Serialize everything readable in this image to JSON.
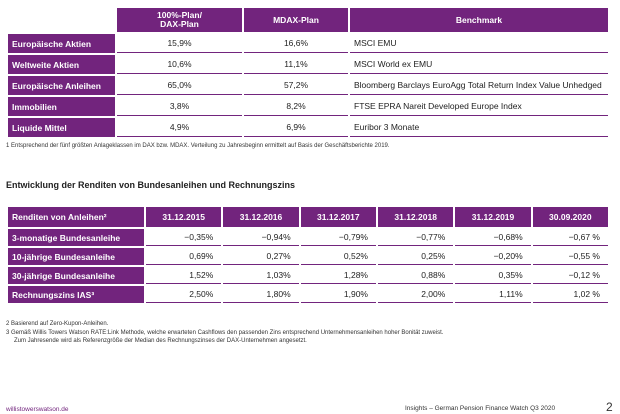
{
  "table1": {
    "headers": [
      "100%-Plan/\nDAX-Plan",
      "MDAX-Plan",
      "Benchmark"
    ],
    "header_line1": "100%-Plan/",
    "header_line2": "DAX-Plan",
    "rows": [
      {
        "label": "Europäische Aktien",
        "dax": "15,9%",
        "mdax": "16,6%",
        "benchmark": "MSCI EMU"
      },
      {
        "label": "Weltweite Aktien",
        "dax": "10,6%",
        "mdax": "11,1%",
        "benchmark": "MSCI World ex EMU"
      },
      {
        "label": "Europäische Anleihen",
        "dax": "65,0%",
        "mdax": "57,2%",
        "benchmark": "Bloomberg Barclays EuroAgg Total Return Index Value Unhedged"
      },
      {
        "label": "Immobilien",
        "dax": "3,8%",
        "mdax": "8,2%",
        "benchmark": "FTSE EPRA Nareit Developed Europe Index"
      },
      {
        "label": "Liquide Mittel",
        "dax": "4,9%",
        "mdax": "6,9%",
        "benchmark": "Euribor 3 Monate"
      }
    ]
  },
  "footnote1": "1  Entsprechend der fünf größten Anlageklassen im DAX bzw. MDAX. Verteilung zu Jahresbeginn ermittelt auf Basis der Geschäftsberichte 2019.",
  "section_title": "Entwicklung der Renditen von Bundesanleihen und Rechnungszins",
  "table2": {
    "header_label": "Renditen von Anleihen²",
    "dates": [
      "31.12.2015",
      "31.12.2016",
      "31.12.2017",
      "31.12.2018",
      "31.12.2019",
      "30.09.2020"
    ],
    "rows": [
      {
        "label": "3-monatige Bundesanleihe",
        "values": [
          "−0,35%",
          "−0,94%",
          "−0,79%",
          "−0,77%",
          "−0,68%",
          "−0,67 %"
        ]
      },
      {
        "label": "10-jährige Bundesanleihe",
        "values": [
          "0,69%",
          "0,27%",
          "0,52%",
          "0,25%",
          "−0,20%",
          "−0,55 %"
        ]
      },
      {
        "label": "30-jährige Bundesanleihe",
        "values": [
          "1,52%",
          "1,03%",
          "1,28%",
          "0,88%",
          "0,35%",
          "−0,12 %"
        ]
      },
      {
        "label": "Rechnungszins IAS³",
        "values": [
          "2,50%",
          "1,80%",
          "1,90%",
          "2,00%",
          "1,11%",
          "1,02 %"
        ]
      }
    ]
  },
  "footnote2": "2  Basierend auf Zero-Kupon-Anleihen.",
  "footnote3a": "3  Gemäß Willis Towers Watson RATE:Link Methode, welche erwarteten Cashflows den passenden Zins entsprechend Unternehmensanleihen hoher Bonität zuweist.",
  "footnote3b": "Zum Jahresende wird als Referenzgröße der Median des Rechnungszinses der DAX-Unternehmen angesetzt.",
  "footer_left": "willistowerswatson.de",
  "footer_right": "Insights – German Pension Finance Watch Q3 2020",
  "page_number": "2"
}
